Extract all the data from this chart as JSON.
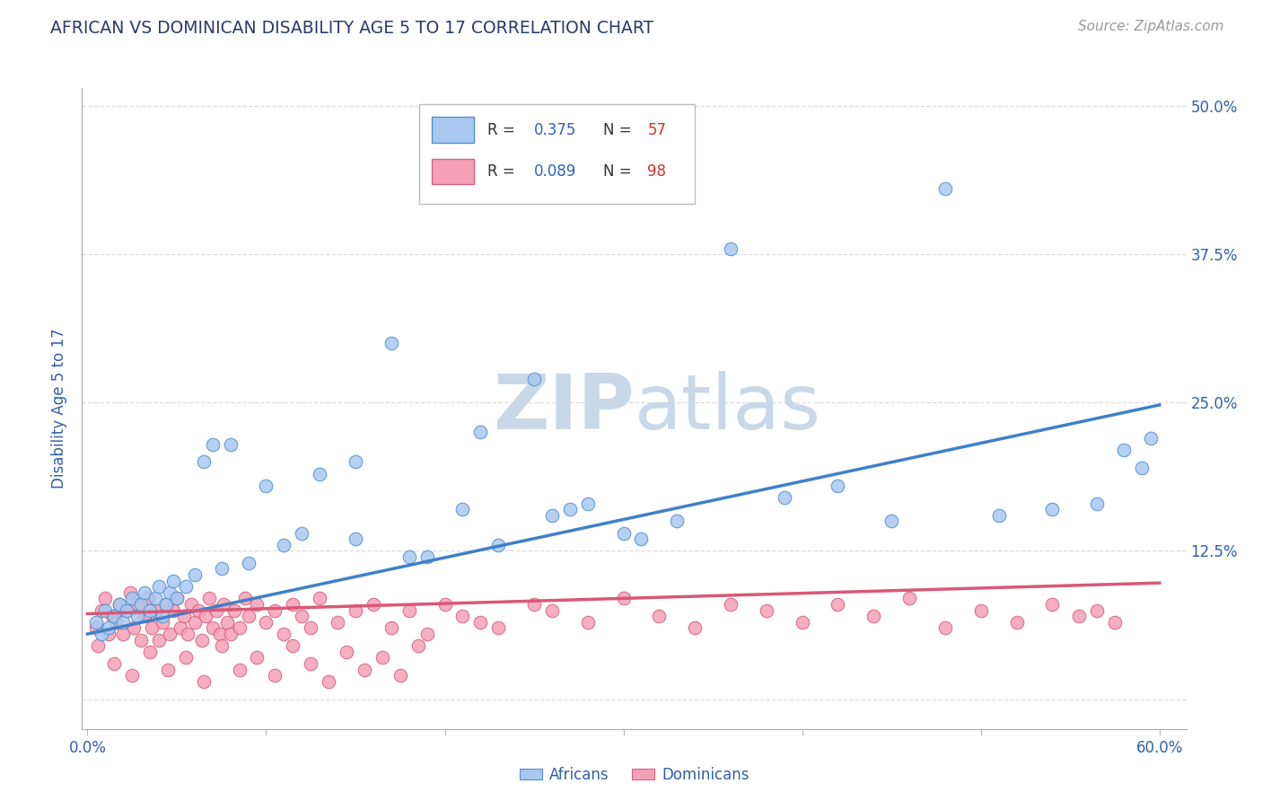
{
  "title": "AFRICAN VS DOMINICAN DISABILITY AGE 5 TO 17 CORRELATION CHART",
  "source": "Source: ZipAtlas.com",
  "ylabel": "Disability Age 5 to 17",
  "xlim": [
    -0.003,
    0.615
  ],
  "ylim": [
    -0.025,
    0.515
  ],
  "xticks": [
    0.0,
    0.1,
    0.2,
    0.3,
    0.4,
    0.5,
    0.6
  ],
  "xticklabels": [
    "0.0%",
    "",
    "",
    "",
    "",
    "",
    "60.0%"
  ],
  "yticks": [
    0.0,
    0.125,
    0.25,
    0.375,
    0.5
  ],
  "yticklabels_right": [
    "",
    "12.5%",
    "25.0%",
    "37.5%",
    "50.0%"
  ],
  "african_color": "#A8C8F0",
  "dominican_color": "#F4A0B8",
  "african_edge_color": "#5090D0",
  "dominican_edge_color": "#D86080",
  "african_line_color": "#4080C8",
  "dominican_line_color": "#D85878",
  "title_color": "#2B3A6B",
  "source_color": "#999999",
  "R_text_color": "#3060C0",
  "N_text_color": "#D03030",
  "label_color": "#3060A8",
  "grid_color": "#DDDDDD",
  "watermark_color": "#C8D8E8",
  "af_line_x0": 0.0,
  "af_line_x1": 0.6,
  "af_line_y0": 0.055,
  "af_line_y1": 0.248,
  "dom_line_x0": 0.0,
  "dom_line_x1": 0.6,
  "dom_line_y0": 0.072,
  "dom_line_y1": 0.098,
  "african_x": [
    0.005,
    0.008,
    0.01,
    0.012,
    0.015,
    0.018,
    0.02,
    0.022,
    0.025,
    0.028,
    0.03,
    0.032,
    0.035,
    0.038,
    0.04,
    0.042,
    0.044,
    0.046,
    0.048,
    0.05,
    0.055,
    0.06,
    0.065,
    0.07,
    0.075,
    0.08,
    0.09,
    0.1,
    0.11,
    0.12,
    0.13,
    0.15,
    0.17,
    0.19,
    0.21,
    0.23,
    0.25,
    0.27,
    0.3,
    0.33,
    0.36,
    0.39,
    0.42,
    0.45,
    0.48,
    0.51,
    0.54,
    0.565,
    0.58,
    0.595,
    0.22,
    0.26,
    0.15,
    0.18,
    0.28,
    0.31,
    0.59
  ],
  "african_y": [
    0.065,
    0.055,
    0.075,
    0.06,
    0.07,
    0.08,
    0.065,
    0.075,
    0.085,
    0.07,
    0.08,
    0.09,
    0.075,
    0.085,
    0.095,
    0.07,
    0.08,
    0.09,
    0.1,
    0.085,
    0.095,
    0.105,
    0.2,
    0.215,
    0.11,
    0.215,
    0.115,
    0.18,
    0.13,
    0.14,
    0.19,
    0.135,
    0.3,
    0.12,
    0.16,
    0.13,
    0.27,
    0.16,
    0.14,
    0.15,
    0.38,
    0.17,
    0.18,
    0.15,
    0.43,
    0.155,
    0.16,
    0.165,
    0.21,
    0.22,
    0.225,
    0.155,
    0.2,
    0.12,
    0.165,
    0.135,
    0.195
  ],
  "dominican_x": [
    0.005,
    0.006,
    0.008,
    0.01,
    0.012,
    0.014,
    0.016,
    0.018,
    0.02,
    0.022,
    0.024,
    0.026,
    0.028,
    0.03,
    0.032,
    0.034,
    0.036,
    0.038,
    0.04,
    0.042,
    0.044,
    0.046,
    0.048,
    0.05,
    0.052,
    0.054,
    0.056,
    0.058,
    0.06,
    0.062,
    0.064,
    0.066,
    0.068,
    0.07,
    0.072,
    0.074,
    0.076,
    0.078,
    0.08,
    0.082,
    0.085,
    0.088,
    0.09,
    0.095,
    0.1,
    0.105,
    0.11,
    0.115,
    0.12,
    0.125,
    0.13,
    0.14,
    0.15,
    0.16,
    0.17,
    0.18,
    0.19,
    0.2,
    0.21,
    0.22,
    0.23,
    0.25,
    0.26,
    0.28,
    0.3,
    0.32,
    0.34,
    0.36,
    0.38,
    0.4,
    0.42,
    0.44,
    0.46,
    0.48,
    0.5,
    0.52,
    0.54,
    0.555,
    0.565,
    0.575,
    0.015,
    0.025,
    0.035,
    0.045,
    0.055,
    0.065,
    0.075,
    0.085,
    0.095,
    0.105,
    0.115,
    0.125,
    0.135,
    0.145,
    0.155,
    0.165,
    0.175,
    0.185
  ],
  "dominican_y": [
    0.06,
    0.045,
    0.075,
    0.085,
    0.055,
    0.07,
    0.065,
    0.08,
    0.055,
    0.075,
    0.09,
    0.06,
    0.08,
    0.05,
    0.07,
    0.085,
    0.06,
    0.075,
    0.05,
    0.065,
    0.08,
    0.055,
    0.075,
    0.085,
    0.06,
    0.07,
    0.055,
    0.08,
    0.065,
    0.075,
    0.05,
    0.07,
    0.085,
    0.06,
    0.075,
    0.055,
    0.08,
    0.065,
    0.055,
    0.075,
    0.06,
    0.085,
    0.07,
    0.08,
    0.065,
    0.075,
    0.055,
    0.08,
    0.07,
    0.06,
    0.085,
    0.065,
    0.075,
    0.08,
    0.06,
    0.075,
    0.055,
    0.08,
    0.07,
    0.065,
    0.06,
    0.08,
    0.075,
    0.065,
    0.085,
    0.07,
    0.06,
    0.08,
    0.075,
    0.065,
    0.08,
    0.07,
    0.085,
    0.06,
    0.075,
    0.065,
    0.08,
    0.07,
    0.075,
    0.065,
    0.03,
    0.02,
    0.04,
    0.025,
    0.035,
    0.015,
    0.045,
    0.025,
    0.035,
    0.02,
    0.045,
    0.03,
    0.015,
    0.04,
    0.025,
    0.035,
    0.02,
    0.045
  ]
}
